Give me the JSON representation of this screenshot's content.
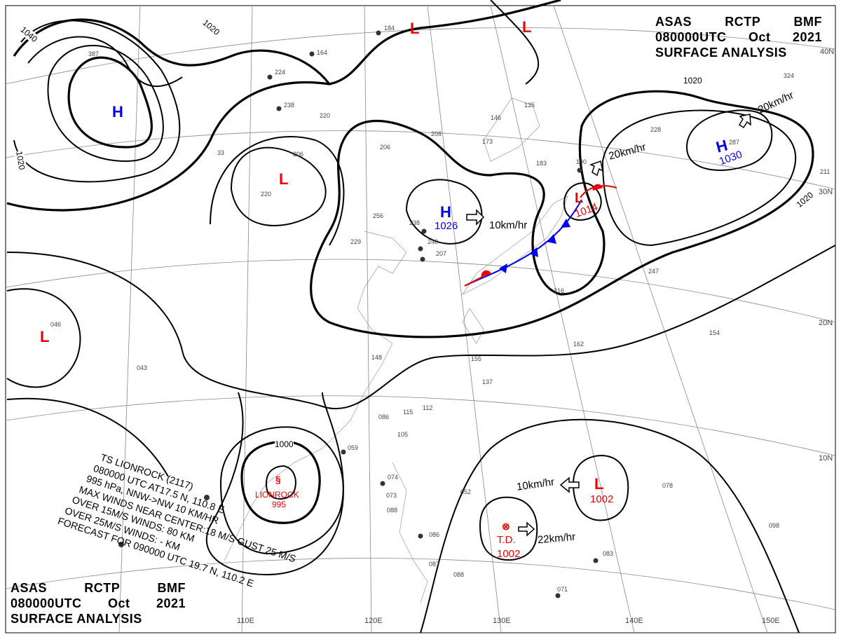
{
  "header": {
    "agency": "ASAS",
    "station": "RCTP",
    "office": "BMF",
    "time": "080000UTC",
    "month": "Oct",
    "year": "2021",
    "title": "SURFACE ANALYSIS"
  },
  "colors": {
    "high": "#0000ee",
    "low": "#ee0000",
    "isobar": "#000000",
    "grid": "#888888",
    "cold_front": "#0000ee",
    "warm_front": "#ee0000"
  },
  "latitudes": [
    "40N",
    "30N",
    "20N",
    "10N"
  ],
  "longitudes": [
    "110E",
    "120E",
    "130E",
    "140E",
    "150E"
  ],
  "isobar_labels": [
    "1040",
    "1020",
    "1020",
    "1020",
    "1020",
    "1000"
  ],
  "centers": [
    {
      "type": "H",
      "pressure": ""
    },
    {
      "type": "L",
      "pressure": ""
    },
    {
      "type": "L",
      "pressure": ""
    },
    {
      "type": "L",
      "pressure": ""
    },
    {
      "type": "H",
      "pressure": "1026",
      "motion": "10km/hr"
    },
    {
      "type": "L",
      "pressure": "1014",
      "motion": "20km/hr"
    },
    {
      "type": "H",
      "pressure": "1030",
      "motion": "20km/hr"
    },
    {
      "type": "L",
      "pressure": ""
    },
    {
      "type": "L",
      "pressure": "1002",
      "motion": "10km/hr"
    },
    {
      "type": "T.D.",
      "pressure": "1002",
      "motion": "22km/hr"
    },
    {
      "type": "LIONROCK",
      "pressure": "995"
    }
  ],
  "typhoon_bulletin": [
    "TS  LIONROCK  (2117)",
    "080000 UTC  AT17.5 N, 110.8 E",
    "995 hPa, NNW->NW  10 KM/HR",
    "MAX WINDS NEAR CENTER:18 M/S GUST 25 M/S",
    "OVER 15M/S WINDS: 80 KM",
    "OVER 25M/S WINDS: - KM",
    "FORECAST FOR 090000 UTC 19.7 N, 110.2 E"
  ],
  "stations": [
    "184",
    "164",
    "224",
    "238",
    "220",
    "206",
    "220",
    "33",
    "256",
    "238",
    "229",
    "240",
    "207",
    "208",
    "206",
    "173",
    "146",
    "135",
    "183",
    "190",
    "228",
    "287",
    "324",
    "211",
    "247",
    "216",
    "162",
    "154",
    "155",
    "137",
    "148",
    "115",
    "112",
    "105",
    "086",
    "059",
    "074",
    "073",
    "088",
    "052",
    "086",
    "087",
    "088",
    "083",
    "071",
    "078",
    "098",
    "046",
    "043",
    "387"
  ]
}
